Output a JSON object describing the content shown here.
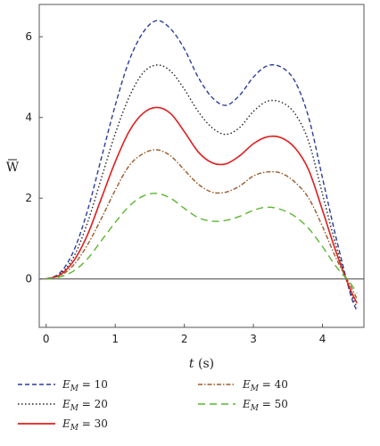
{
  "chart_data": {
    "type": "line",
    "xlabel_var": "t",
    "xlabel_unit": " (s)",
    "ylabel": "W",
    "xlim": [
      -0.1,
      4.6
    ],
    "ylim": [
      -1.2,
      6.8
    ],
    "xticks": [
      "0",
      "1",
      "2",
      "3",
      "4"
    ],
    "yticks": [
      "0",
      "2",
      "4",
      "6"
    ],
    "grid": false,
    "legend_position": "bottom",
    "x": [
      0.0,
      0.2,
      0.4,
      0.6,
      0.8,
      1.0,
      1.2,
      1.4,
      1.6,
      1.8,
      2.0,
      2.2,
      2.4,
      2.6,
      2.8,
      3.0,
      3.2,
      3.4,
      3.6,
      3.8,
      4.0,
      4.2,
      4.4,
      4.5
    ],
    "series": [
      {
        "name": "E_M = 10",
        "label_prefix": "E",
        "label_sub": "M",
        "label_value": " = 10",
        "color": "#2b3d9c",
        "dash": "5,3",
        "values": [
          0.0,
          0.15,
          0.7,
          1.7,
          3.0,
          4.3,
          5.4,
          6.1,
          6.4,
          6.2,
          5.7,
          5.0,
          4.5,
          4.3,
          4.55,
          5.0,
          5.28,
          5.25,
          4.9,
          4.0,
          2.5,
          1.0,
          -0.35,
          -0.8
        ]
      },
      {
        "name": "E_M = 20",
        "label_prefix": "E",
        "label_sub": "M",
        "label_value": " = 20",
        "color": "#222222",
        "dash": "1.5,2.5",
        "values": [
          0.0,
          0.12,
          0.55,
          1.4,
          2.5,
          3.6,
          4.5,
          5.1,
          5.3,
          5.15,
          4.7,
          4.15,
          3.75,
          3.58,
          3.75,
          4.15,
          4.4,
          4.38,
          4.1,
          3.4,
          2.1,
          0.8,
          -0.3,
          -0.7
        ]
      },
      {
        "name": "E_M = 30",
        "label_prefix": "E",
        "label_sub": "M",
        "label_value": " = 30",
        "color": "#e11d1d",
        "dash": "",
        "values": [
          0.0,
          0.1,
          0.45,
          1.1,
          2.0,
          2.9,
          3.65,
          4.1,
          4.25,
          4.1,
          3.65,
          3.15,
          2.88,
          2.85,
          3.05,
          3.35,
          3.52,
          3.5,
          3.25,
          2.7,
          1.7,
          0.65,
          -0.25,
          -0.6
        ]
      },
      {
        "name": "E_M = 40",
        "label_prefix": "E",
        "label_sub": "M",
        "label_value": " = 40",
        "color": "#9b5a2a",
        "dash": "5,2,1.5,2",
        "values": [
          0.0,
          0.08,
          0.35,
          0.85,
          1.5,
          2.2,
          2.8,
          3.1,
          3.2,
          3.05,
          2.7,
          2.35,
          2.15,
          2.15,
          2.3,
          2.55,
          2.65,
          2.62,
          2.4,
          2.0,
          1.3,
          0.5,
          -0.15,
          -0.5
        ]
      },
      {
        "name": "E_M = 50",
        "label_prefix": "E",
        "label_sub": "M",
        "label_value": " = 50",
        "color": "#5cb531",
        "dash": "8,5",
        "values": [
          0.0,
          0.05,
          0.2,
          0.5,
          0.95,
          1.4,
          1.8,
          2.05,
          2.12,
          2.0,
          1.75,
          1.52,
          1.43,
          1.45,
          1.55,
          1.7,
          1.78,
          1.72,
          1.55,
          1.25,
          0.8,
          0.3,
          -0.1,
          -0.35
        ]
      }
    ]
  }
}
